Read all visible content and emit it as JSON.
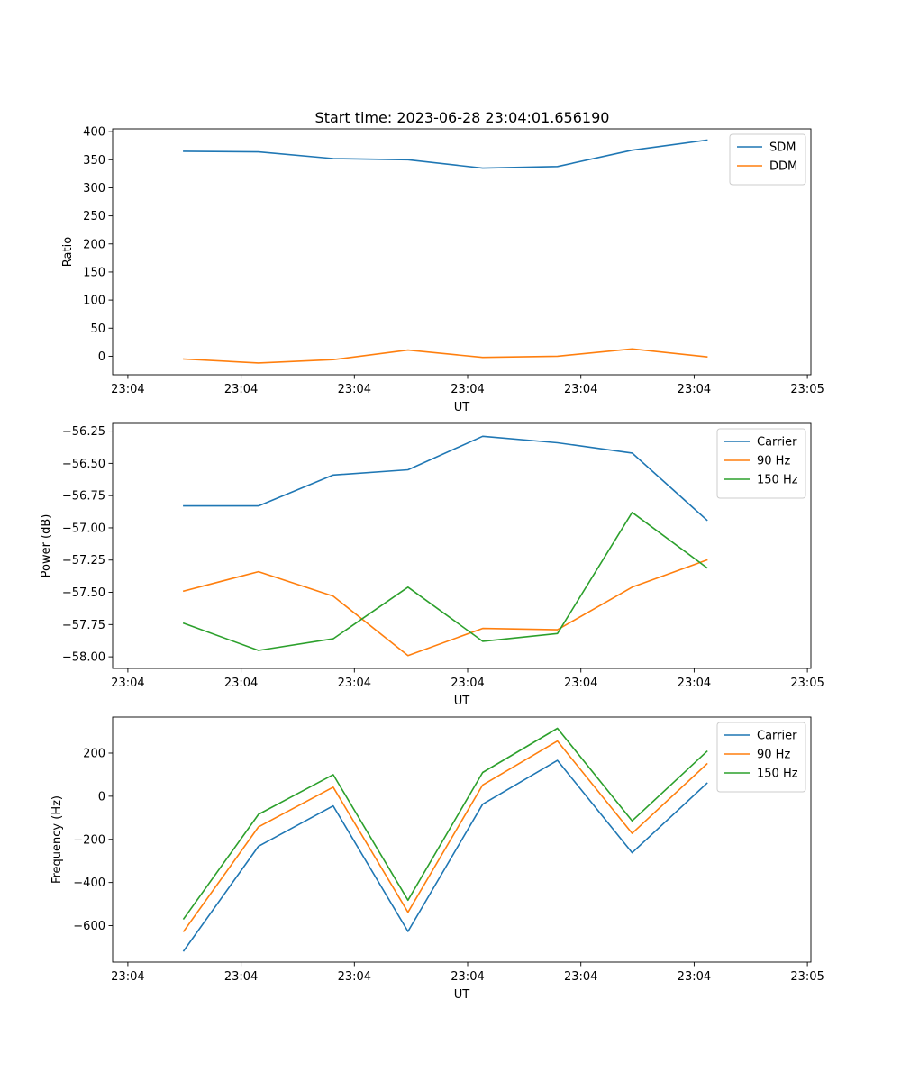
{
  "figure_title": "Start time: 2023-06-28 23:04:01.656190",
  "colors": {
    "blue": "#1f77b4",
    "orange": "#ff7f0e",
    "green": "#2ca02c"
  },
  "chart_data": [
    {
      "type": "line",
      "title": "Start time: 2023-06-28 23:04:01.656190",
      "xlabel": "UT",
      "ylabel": "Ratio",
      "x_tick_labels": [
        "23:04",
        "23:04",
        "23:04",
        "23:04",
        "23:04",
        "23:04",
        "23:05"
      ],
      "x_ticks": [
        0,
        1,
        2,
        3,
        4,
        5,
        6
      ],
      "xlim": [
        -0.1345,
        6.0309
      ],
      "x": [
        0.4928,
        1.1533,
        1.8132,
        2.4731,
        3.133,
        3.7929,
        4.4528,
        5.1127
      ],
      "ylim": [
        -33,
        405
      ],
      "y_ticks": [
        0,
        50,
        100,
        150,
        200,
        250,
        300,
        350,
        400
      ],
      "y_tick_labels": [
        "0",
        "50",
        "100",
        "150",
        "200",
        "250",
        "300",
        "350",
        "400"
      ],
      "legend_position": "upper right",
      "series": [
        {
          "name": "SDM",
          "color": "#1f77b4",
          "values": [
            365,
            364,
            352,
            350,
            335,
            338,
            367,
            385
          ]
        },
        {
          "name": "DDM",
          "color": "#ff7f0e",
          "values": [
            -5,
            -12,
            -6,
            11,
            -2,
            0,
            13,
            -1
          ]
        }
      ]
    },
    {
      "type": "line",
      "title": "",
      "xlabel": "UT",
      "ylabel": "Power (dB)",
      "x_tick_labels": [
        "23:04",
        "23:04",
        "23:04",
        "23:04",
        "23:04",
        "23:04",
        "23:05"
      ],
      "x_ticks": [
        0,
        1,
        2,
        3,
        4,
        5,
        6
      ],
      "xlim": [
        -0.1345,
        6.0309
      ],
      "x": [
        0.4928,
        1.1533,
        1.8132,
        2.4731,
        3.133,
        3.7929,
        4.4528,
        5.1127
      ],
      "ylim": [
        -58.09,
        -56.19
      ],
      "y_ticks": [
        -58.0,
        -57.75,
        -57.5,
        -57.25,
        -57.0,
        -56.75,
        -56.5,
        -56.25
      ],
      "y_tick_labels": [
        "−58.00",
        "−57.75",
        "−57.50",
        "−57.25",
        "−57.00",
        "−56.75",
        "−56.50",
        "−56.25"
      ],
      "legend_position": "upper right",
      "series": [
        {
          "name": "Carrier",
          "color": "#1f77b4",
          "values": [
            -56.83,
            -56.83,
            -56.59,
            -56.55,
            -56.29,
            -56.34,
            -56.42,
            -56.94
          ]
        },
        {
          "name": "90 Hz",
          "color": "#ff7f0e",
          "values": [
            -57.49,
            -57.34,
            -57.53,
            -57.99,
            -57.78,
            -57.79,
            -57.46,
            -57.25
          ]
        },
        {
          "name": "150 Hz",
          "color": "#2ca02c",
          "values": [
            -57.74,
            -57.95,
            -57.86,
            -57.46,
            -57.88,
            -57.82,
            -56.88,
            -57.31
          ]
        }
      ]
    },
    {
      "type": "line",
      "title": "",
      "xlabel": "UT",
      "ylabel": "Frequency (Hz)",
      "x_tick_labels": [
        "23:04",
        "23:04",
        "23:04",
        "23:04",
        "23:04",
        "23:04",
        "23:05"
      ],
      "x_ticks": [
        0,
        1,
        2,
        3,
        4,
        5,
        6
      ],
      "xlim": [
        -0.1345,
        6.0309
      ],
      "x": [
        0.4928,
        1.1533,
        1.8132,
        2.4731,
        3.133,
        3.7929,
        4.4528,
        5.1127
      ],
      "ylim": [
        -769,
        367
      ],
      "y_ticks": [
        -600,
        -400,
        -200,
        0,
        200
      ],
      "y_tick_labels": [
        "−600",
        "−400",
        "−200",
        "0",
        "200"
      ],
      "legend_position": "upper right",
      "series": [
        {
          "name": "Carrier",
          "color": "#1f77b4",
          "values": [
            -717,
            -232,
            -45,
            -627,
            -37,
            166,
            -262,
            60
          ]
        },
        {
          "name": "90 Hz",
          "color": "#ff7f0e",
          "values": [
            -626,
            -142,
            42,
            -538,
            52,
            256,
            -172,
            150
          ]
        },
        {
          "name": "150 Hz",
          "color": "#2ca02c",
          "values": [
            -568,
            -84,
            100,
            -482,
            110,
            315,
            -114,
            208
          ]
        }
      ]
    }
  ]
}
